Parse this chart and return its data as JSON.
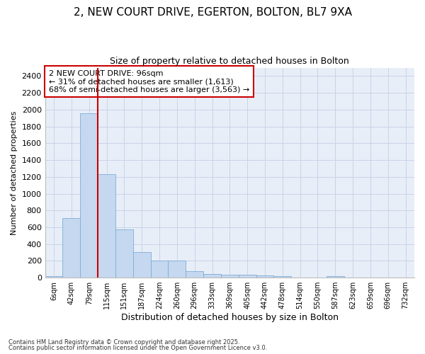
{
  "title_line1": "2, NEW COURT DRIVE, EGERTON, BOLTON, BL7 9XA",
  "title_line2": "Size of property relative to detached houses in Bolton",
  "xlabel": "Distribution of detached houses by size in Bolton",
  "ylabel": "Number of detached properties",
  "categories": [
    "6sqm",
    "42sqm",
    "79sqm",
    "115sqm",
    "151sqm",
    "187sqm",
    "224sqm",
    "260sqm",
    "296sqm",
    "333sqm",
    "369sqm",
    "405sqm",
    "442sqm",
    "478sqm",
    "514sqm",
    "550sqm",
    "587sqm",
    "623sqm",
    "659sqm",
    "696sqm",
    "732sqm"
  ],
  "values": [
    15,
    710,
    1960,
    1235,
    575,
    305,
    200,
    200,
    80,
    45,
    35,
    35,
    30,
    15,
    0,
    0,
    15,
    0,
    0,
    0,
    0
  ],
  "bar_color": "#c5d8f0",
  "bar_edge_color": "#7eadd4",
  "grid_color": "#c8d4e8",
  "plot_bg_color": "#e8eef8",
  "fig_bg_color": "#ffffff",
  "annotation_box_text": "2 NEW COURT DRIVE: 96sqm\n← 31% of detached houses are smaller (1,613)\n68% of semi-detached houses are larger (3,563) →",
  "vline_color": "#cc0000",
  "vline_x": 2.5,
  "ylim": [
    0,
    2500
  ],
  "yticks": [
    0,
    200,
    400,
    600,
    800,
    1000,
    1200,
    1400,
    1600,
    1800,
    2000,
    2200,
    2400
  ],
  "footer_line1": "Contains HM Land Registry data © Crown copyright and database right 2025.",
  "footer_line2": "Contains public sector information licensed under the Open Government Licence v3.0.",
  "figsize": [
    6.0,
    5.0
  ],
  "dpi": 100
}
